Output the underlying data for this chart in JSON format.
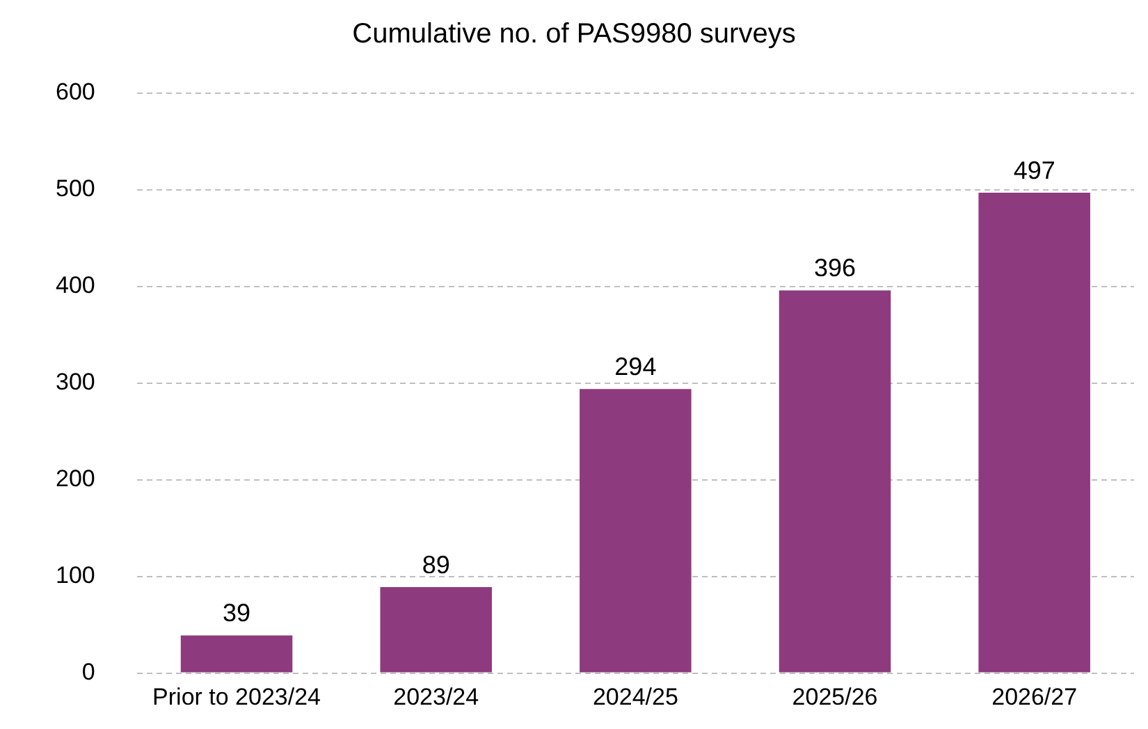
{
  "chart_data": {
    "type": "bar",
    "title": "Cumulative no. of PAS9980 surveys",
    "categories": [
      "Prior to 2023/24",
      "2023/24",
      "2024/25",
      "2025/26",
      "2026/27"
    ],
    "values": [
      39,
      89,
      294,
      396,
      497
    ],
    "color": "#8e3a7e",
    "ylim": [
      0,
      600
    ],
    "yticks": [
      0,
      100,
      200,
      300,
      400,
      500,
      600
    ],
    "grid": "y",
    "data_labels": true
  }
}
